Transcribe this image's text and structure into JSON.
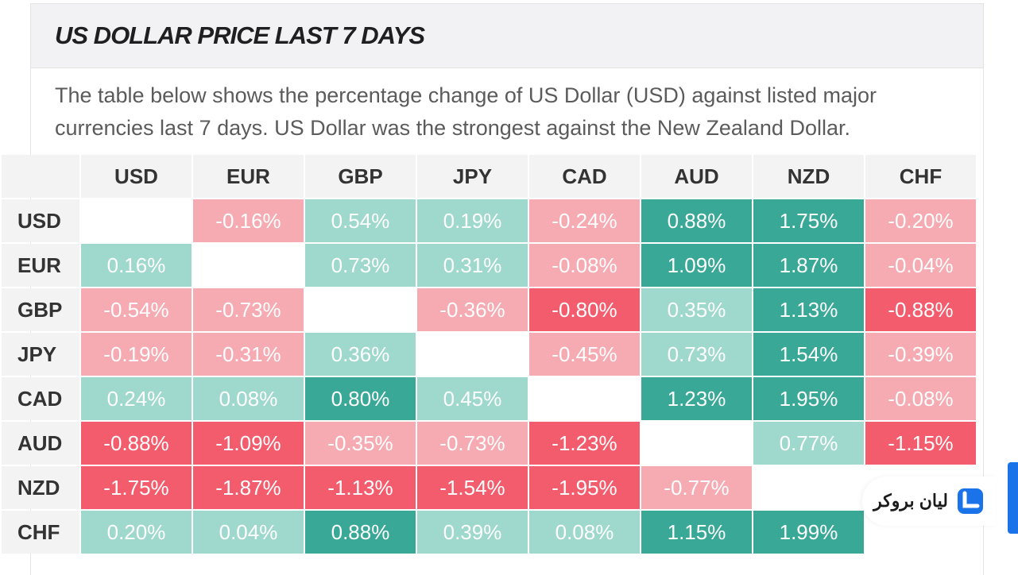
{
  "header": {
    "title": "US DOLLAR PRICE LAST 7 DAYS"
  },
  "description": {
    "line1": "The table below shows the percentage change of US Dollar (USD) against listed major",
    "line2": "currencies last 7 days. US Dollar was the strongest against the New Zealand Dollar."
  },
  "table": {
    "columns": [
      "USD",
      "EUR",
      "GBP",
      "JPY",
      "CAD",
      "AUD",
      "NZD",
      "CHF"
    ],
    "rows": [
      {
        "label": "USD",
        "cells": [
          "",
          "-0.16%",
          "0.54%",
          "0.19%",
          "-0.24%",
          "0.88%",
          "1.75%",
          "-0.20%"
        ]
      },
      {
        "label": "EUR",
        "cells": [
          "0.16%",
          "",
          "0.73%",
          "0.31%",
          "-0.08%",
          "1.09%",
          "1.87%",
          "-0.04%"
        ]
      },
      {
        "label": "GBP",
        "cells": [
          "-0.54%",
          "-0.73%",
          "",
          "-0.36%",
          "-0.80%",
          "0.35%",
          "1.13%",
          "-0.88%"
        ]
      },
      {
        "label": "JPY",
        "cells": [
          "-0.19%",
          "-0.31%",
          "0.36%",
          "",
          "-0.45%",
          "0.73%",
          "1.54%",
          "-0.39%"
        ]
      },
      {
        "label": "CAD",
        "cells": [
          "0.24%",
          "0.08%",
          "0.80%",
          "0.45%",
          "",
          "1.23%",
          "1.95%",
          "-0.08%"
        ]
      },
      {
        "label": "AUD",
        "cells": [
          "-0.88%",
          "-1.09%",
          "-0.35%",
          "-0.73%",
          "-1.23%",
          "",
          "0.77%",
          "-1.15%"
        ]
      },
      {
        "label": "NZD",
        "cells": [
          "-1.75%",
          "-1.87%",
          "-1.13%",
          "-1.54%",
          "-1.95%",
          "-0.77%",
          "",
          ""
        ]
      },
      {
        "label": "CHF",
        "cells": [
          "0.20%",
          "0.04%",
          "0.88%",
          "0.39%",
          "0.08%",
          "1.15%",
          "1.99%",
          ""
        ]
      }
    ]
  },
  "colors": {
    "strong_positive": "#3aa896",
    "light_positive": "#9fd8cc",
    "strong_negative": "#f25c6c",
    "light_negative": "#f6aab2",
    "empty": "#ffffff"
  },
  "watermark": {
    "text": "لیان بروکر"
  }
}
